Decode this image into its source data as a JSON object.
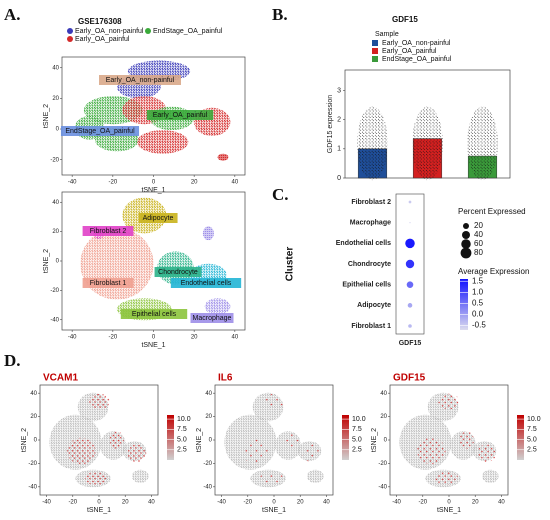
{
  "panel_labels": [
    "A.",
    "B.",
    "C.",
    "D."
  ],
  "chart_data": [
    {
      "type": "scatter",
      "title": "GSE176308",
      "xlabel": "tSNE_1",
      "ylabel": "tSNE_2",
      "xlim": [
        -45,
        45
      ],
      "ylim": [
        -30,
        47
      ],
      "xticks": [
        -40,
        -20,
        0,
        20,
        40
      ],
      "yticks": [
        -20,
        0,
        20,
        40
      ],
      "legend": [
        {
          "name": "Early_OA_non-painful",
          "color": "#3a3ab8"
        },
        {
          "name": "Early_OA_painful",
          "color": "#d42a2a"
        },
        {
          "name": "EndStage_OA_painful",
          "color": "#3aaa3a"
        }
      ],
      "annotations": [
        {
          "text": "Early_OA_non-painful",
          "color": "#d9a98a"
        },
        {
          "text": "Early_OA_painful",
          "color": "#3aaa3a"
        },
        {
          "text": "EndStage_OA_painful",
          "color": "#6a8fe0"
        }
      ]
    },
    {
      "type": "scatter",
      "xlabel": "tSNE_1",
      "ylabel": "tSNE_2",
      "xlim": [
        -45,
        45
      ],
      "ylim": [
        -47,
        47
      ],
      "xticks": [
        -40,
        -20,
        0,
        20,
        40
      ],
      "yticks": [
        -40,
        -20,
        0,
        20,
        40
      ],
      "annotations": [
        {
          "text": "Adipocyte",
          "color": "#c9b21c"
        },
        {
          "text": "Fibroblast 2",
          "color": "#e040c8"
        },
        {
          "text": "Chondrocyte",
          "color": "#2cb38a"
        },
        {
          "text": "Endothelial cells",
          "color": "#22b5d5"
        },
        {
          "text": "Fibroblast 1",
          "color": "#f0a090"
        },
        {
          "text": "Macrophage",
          "color": "#9d8ee8"
        },
        {
          "text": "Epithelial cells",
          "color": "#8cc43c"
        }
      ]
    },
    {
      "type": "bar",
      "title": "GDF15",
      "legend_title": "Sample",
      "ylabel": "GDF15 expression",
      "categories": [
        "Early_OA_non-painful",
        "Early_OA_painful",
        "EndStage_OA_painful"
      ],
      "values": [
        1.0,
        1.35,
        0.75
      ],
      "colors": [
        "#1f4e99",
        "#d42020",
        "#3a9a3a"
      ],
      "ylim": [
        0,
        3.7
      ],
      "yticks": [
        0,
        1,
        2,
        3
      ]
    },
    {
      "type": "dot",
      "ylabel": "Cluster",
      "xlabel": "GDF15",
      "categories": [
        "Fibroblast 2",
        "Macrophage",
        "Endothelial cells",
        "Chondrocyte",
        "Epithelial cells",
        "Adipocyte",
        "Fibroblast 1"
      ],
      "percent": [
        2,
        0,
        60,
        45,
        25,
        10,
        5
      ],
      "average": [
        -0.5,
        -0.6,
        1.5,
        1.2,
        0.6,
        -0.1,
        -0.3
      ],
      "size_title": "Percent Expressed",
      "size_ticks": [
        20,
        40,
        60,
        80
      ],
      "color_title": "Average Expression",
      "colorlim": [
        -0.7,
        1.6
      ],
      "color_ticks": [
        1.5,
        {
          "value": 1.0,
          "label": "1.0"
        },
        0.5,
        {
          "value": 0.0,
          "label": "0.0"
        },
        -0.5
      ]
    },
    {
      "type": "feature",
      "title": "VCAM1",
      "xlabel": "tSNE_1",
      "ylabel": "tSNE_2",
      "xlim": [
        -45,
        45
      ],
      "ylim": [
        -47,
        47
      ],
      "xticks": [
        -40,
        -20,
        0,
        20,
        40
      ],
      "yticks": [
        -40,
        -20,
        0,
        20,
        40
      ],
      "colorlim": [
        0,
        11
      ],
      "color_ticks": [
        {
          "value": 10.0,
          "label": "10.0"
        },
        7.5,
        {
          "value": 5.0,
          "label": "5.0"
        },
        2.5
      ]
    },
    {
      "type": "feature",
      "title": "IL6",
      "xlabel": "tSNE_1",
      "ylabel": "tSNE_2",
      "xlim": [
        -45,
        45
      ],
      "ylim": [
        -47,
        47
      ],
      "xticks": [
        -40,
        -20,
        0,
        20,
        40
      ],
      "yticks": [
        -40,
        -20,
        0,
        20,
        40
      ],
      "colorlim": [
        0,
        11
      ],
      "color_ticks": [
        {
          "value": 10.0,
          "label": "10.0"
        },
        7.5,
        {
          "value": 5.0,
          "label": "5.0"
        },
        2.5
      ]
    },
    {
      "type": "feature",
      "title": "GDF15",
      "xlabel": "tSNE_1",
      "ylabel": "tSNE_2",
      "xlim": [
        -45,
        45
      ],
      "ylim": [
        -47,
        47
      ],
      "xticks": [
        -40,
        -20,
        0,
        20,
        40
      ],
      "yticks": [
        -40,
        -20,
        0,
        20,
        40
      ],
      "colorlim": [
        0,
        11
      ],
      "color_ticks": [
        {
          "value": 10.0,
          "label": "10.0"
        },
        7.5,
        {
          "value": 5.0,
          "label": "5.0"
        },
        2.5
      ]
    }
  ]
}
